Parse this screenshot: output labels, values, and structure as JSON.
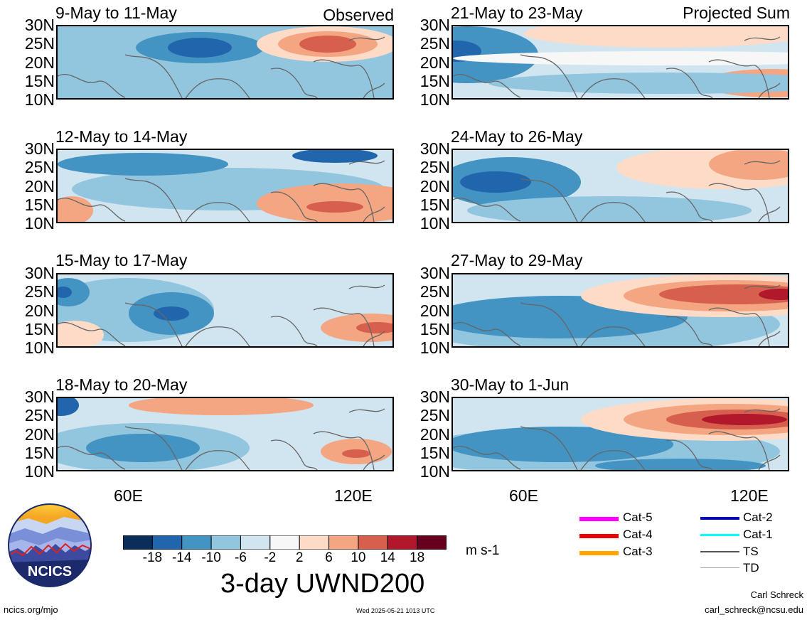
{
  "chart_data": {
    "type": "heatmap",
    "title": "3-day UWND200",
    "units": "m s-1",
    "ylim": [
      "10N",
      "30N"
    ],
    "yticks": [
      "30N",
      "25N",
      "20N",
      "15N",
      "10N"
    ],
    "xticks": [
      "60E",
      "120E"
    ],
    "colorbar": {
      "ticks": [
        "-18",
        "-14",
        "-10",
        "-6",
        "-2",
        "2",
        "6",
        "10",
        "14",
        "18"
      ],
      "colors": [
        "#0a2d5c",
        "#2166ac",
        "#4393c3",
        "#92c5de",
        "#d1e5f0",
        "#f7f7f7",
        "#fddbc7",
        "#f4a582",
        "#d6604d",
        "#b2182b",
        "#67001f"
      ]
    },
    "panels": [
      {
        "title": "9-May to 11-May",
        "label": "Observed",
        "column": "left"
      },
      {
        "title": "12-May to 14-May",
        "label": "",
        "column": "left"
      },
      {
        "title": "15-May to 17-May",
        "label": "",
        "column": "left"
      },
      {
        "title": "18-May to 20-May",
        "label": "",
        "column": "left"
      },
      {
        "title": "21-May to 23-May",
        "label": "Projected Sum",
        "column": "right"
      },
      {
        "title": "24-May to 26-May",
        "label": "",
        "column": "right"
      },
      {
        "title": "27-May to 29-May",
        "label": "",
        "column": "right"
      },
      {
        "title": "30-May to 1-Jun",
        "label": "",
        "column": "right"
      }
    ]
  },
  "legend": {
    "tracks": [
      {
        "label": "Cat-5",
        "color": "#ff00ff"
      },
      {
        "label": "Cat-4",
        "color": "#ee0000"
      },
      {
        "label": "Cat-3",
        "color": "#ffa500"
      },
      {
        "label": "Cat-2",
        "color": "#0000cc"
      },
      {
        "label": "Cat-1",
        "color": "#00ffff"
      },
      {
        "label": "TS",
        "color": "#555555"
      },
      {
        "label": "TD",
        "color": "#aaaaaa"
      }
    ]
  },
  "logo": {
    "text": "NCICS"
  },
  "footer": {
    "site": "ncics.org/mjo",
    "timestamp": "Wed 2025-05-21 1013 UTC",
    "author": "Carl Schreck",
    "email": "carl_schreck@ncsu.edu"
  }
}
